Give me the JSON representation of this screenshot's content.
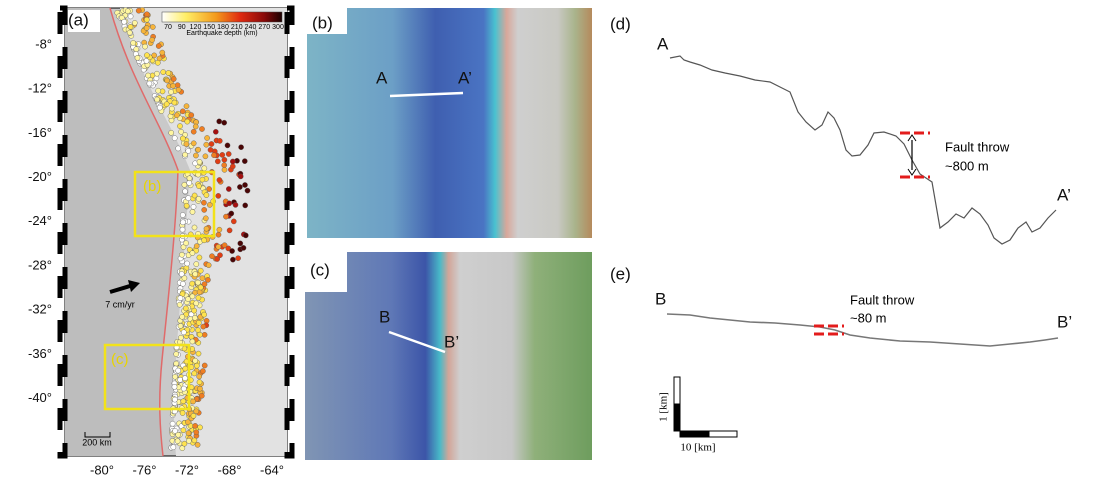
{
  "panel_a": {
    "label": "(a)",
    "colorbar_ticks": [
      "70",
      "90",
      "120",
      "150",
      "180",
      "210",
      "240",
      "270",
      "300"
    ],
    "colorbar_title": "Earthquake depth (km)",
    "lat_ticks": [
      "-8°",
      "-12°",
      "-16°",
      "-20°",
      "-24°",
      "-28°",
      "-32°",
      "-36°",
      "-40°"
    ],
    "lon_ticks": [
      "-80°",
      "-76°",
      "-72°",
      "-68°",
      "-64°"
    ],
    "box_b": "(b)",
    "box_c": "(c)",
    "velocity": "7 cm/yr",
    "scale": "200 km"
  },
  "panel_b": {
    "label": "(b)",
    "start": "A",
    "end": "A’"
  },
  "panel_c": {
    "label": "(c)",
    "start": "B",
    "end": "B’"
  },
  "panel_d": {
    "label": "(d)",
    "start": "A",
    "end": "A’",
    "note_title": "Fault throw",
    "note_value": "~800 m"
  },
  "panel_e": {
    "label": "(e)",
    "start": "B",
    "end": "B’",
    "note_title": "Fault throw",
    "note_value": "~80 m",
    "scale_v": "1 [km]",
    "scale_h": "10 [km]"
  }
}
